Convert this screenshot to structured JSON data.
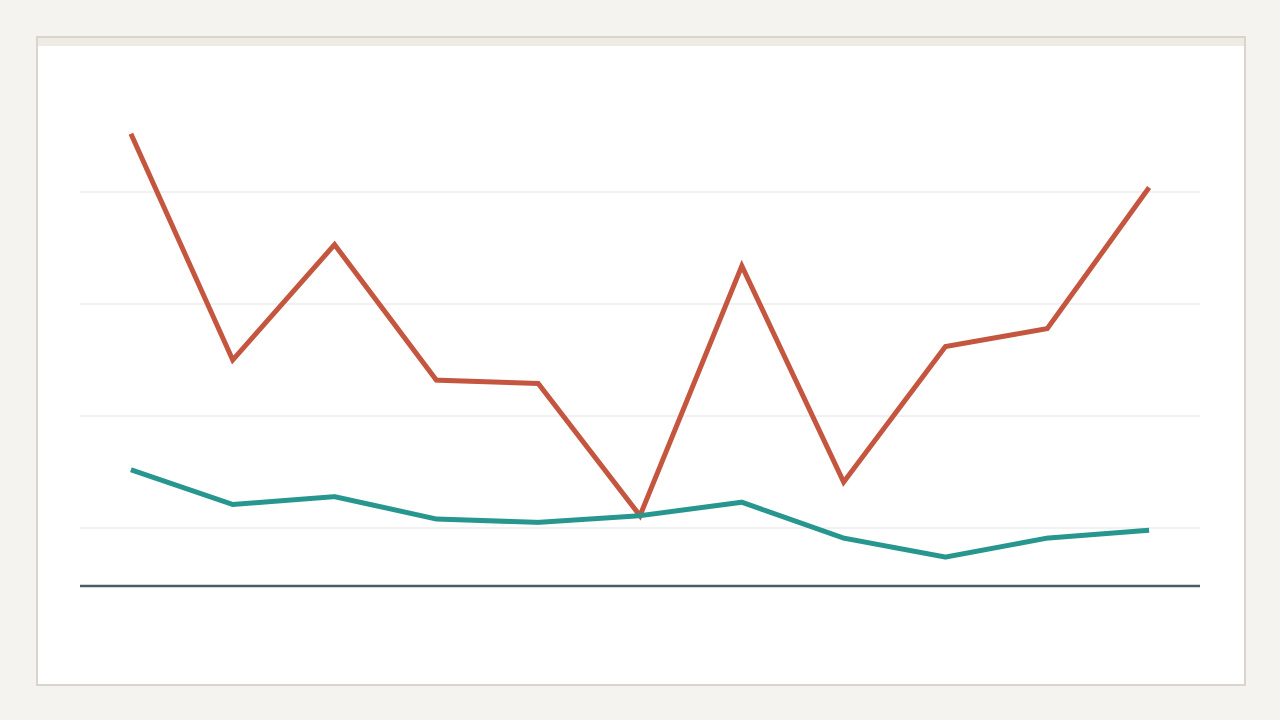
{
  "chart_data": {
    "type": "line",
    "categories": [
      null,
      null,
      null,
      null,
      null,
      null,
      null,
      null,
      null,
      null,
      null
    ],
    "series": [
      {
        "color": "#c4553f",
        "values": [
          45.2,
          25,
          35.3,
          23.2,
          22.9,
          11.1,
          33.4,
          14.1,
          26.2,
          27.8,
          40.4
        ]
      },
      {
        "color": "#27968f",
        "values": [
          15.2,
          12.1,
          12.8,
          10.8,
          10.5,
          11.1,
          12.3,
          9.1,
          7.4,
          9.1,
          9.8
        ]
      }
    ],
    "ylim": [
      5,
      50
    ],
    "yticks": [
      10,
      20,
      30,
      40
    ],
    "grid": true
  }
}
